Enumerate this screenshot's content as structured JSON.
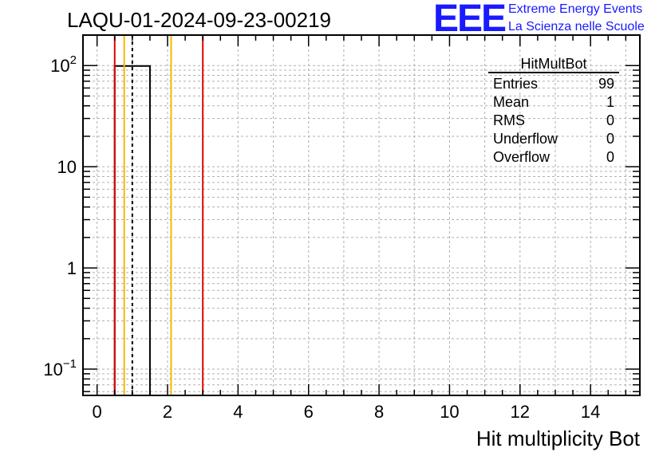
{
  "run_title": "LAQU-01-2024-09-23-00219",
  "logo": {
    "mark": "EEE",
    "line1": "Extreme Energy Events",
    "line2": "La Scienza nelle Scuole",
    "color": "#1a1aff"
  },
  "stats": {
    "title": "HitMultBot",
    "rows": [
      {
        "label": "Entries",
        "value": "99"
      },
      {
        "label": "Mean",
        "value": "1"
      },
      {
        "label": "RMS",
        "value": "0"
      },
      {
        "label": "Underflow",
        "value": "0"
      },
      {
        "label": "Overflow",
        "value": "0"
      }
    ]
  },
  "chart_data": {
    "type": "bar",
    "title": "LAQU-01-2024-09-23-00219",
    "xlabel": "Hit multiplicity Bot",
    "ylabel": "",
    "xlim": [
      -0.4,
      15.4
    ],
    "ylim": [
      0.055,
      200
    ],
    "yscale": "log",
    "grid": true,
    "bins": [
      {
        "low": 0.5,
        "high": 1.5,
        "count": 99
      }
    ],
    "x_ticks": [
      0,
      2,
      4,
      6,
      8,
      10,
      12,
      14
    ],
    "y_ticks": [
      {
        "value": 0.1,
        "label": "10",
        "sup": "−1"
      },
      {
        "value": 1,
        "label": "1",
        "sup": ""
      },
      {
        "value": 10,
        "label": "10",
        "sup": ""
      },
      {
        "value": 100,
        "label": "10",
        "sup": "2"
      }
    ],
    "vlines": [
      {
        "x": 0.5,
        "color": "#e00000",
        "style": "solid"
      },
      {
        "x": 0.77,
        "color": "#f5b800",
        "style": "solid"
      },
      {
        "x": 1.0,
        "color": "#000000",
        "style": "dashed"
      },
      {
        "x": 2.1,
        "color": "#f5b800",
        "style": "solid"
      },
      {
        "x": 3.0,
        "color": "#e00000",
        "style": "solid"
      }
    ]
  }
}
